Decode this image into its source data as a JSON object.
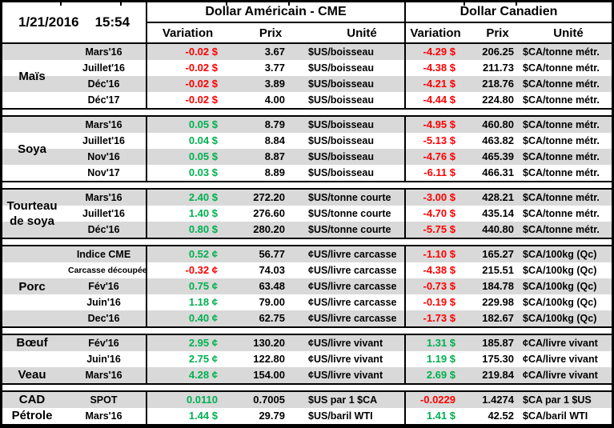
{
  "meta": {
    "date": "1/21/2016",
    "time": "15:54"
  },
  "header": {
    "us_title": "Dollar Américain - CME",
    "ca_title": "Dollar Canadien",
    "col_variation": "Variation",
    "col_prix": "Prix",
    "col_unite": "Unité"
  },
  "colors": {
    "up_green": "#00B050",
    "down_red": "#FF0000",
    "stripe_gray": "#D9D9D9"
  },
  "sections": [
    {
      "id": "mais",
      "label_lines": [
        "Maïs"
      ],
      "rows": [
        {
          "month": "Mars'16",
          "us_var": "-0.02 $",
          "us_trend": "down",
          "us_prix": "3.67",
          "us_unit": "$US/boisseau",
          "ca_var": "-4.29 $",
          "ca_trend": "down",
          "ca_prix": "206.25",
          "ca_unit": "$CA/tonne métr."
        },
        {
          "month": "Juillet'16",
          "us_var": "-0.02 $",
          "us_trend": "down",
          "us_prix": "3.77",
          "us_unit": "$US/boisseau",
          "ca_var": "-4.38 $",
          "ca_trend": "down",
          "ca_prix": "211.73",
          "ca_unit": "$CA/tonne métr."
        },
        {
          "month": "Déc'16",
          "us_var": "-0.02 $",
          "us_trend": "down",
          "us_prix": "3.89",
          "us_unit": "$US/boisseau",
          "ca_var": "-4.21 $",
          "ca_trend": "down",
          "ca_prix": "218.76",
          "ca_unit": "$CA/tonne métr."
        },
        {
          "month": "Déc'17",
          "us_var": "-0.02 $",
          "us_trend": "down",
          "us_prix": "4.00",
          "us_unit": "$US/boisseau",
          "ca_var": "-4.44 $",
          "ca_trend": "down",
          "ca_prix": "224.80",
          "ca_unit": "$CA/tonne métr."
        }
      ]
    },
    {
      "id": "soya",
      "label_lines": [
        "Soya"
      ],
      "rows": [
        {
          "month": "Mars'16",
          "us_var": "0.05 $",
          "us_trend": "up",
          "us_prix": "8.79",
          "us_unit": "$US/boisseau",
          "ca_var": "-4.95 $",
          "ca_trend": "down",
          "ca_prix": "460.80",
          "ca_unit": "$CA/tonne métr."
        },
        {
          "month": "Juillet'16",
          "us_var": "0.04 $",
          "us_trend": "up",
          "us_prix": "8.84",
          "us_unit": "$US/boisseau",
          "ca_var": "-5.13 $",
          "ca_trend": "down",
          "ca_prix": "463.82",
          "ca_unit": "$CA/tonne métr."
        },
        {
          "month": "Nov'16",
          "us_var": "0.05 $",
          "us_trend": "up",
          "us_prix": "8.87",
          "us_unit": "$US/boisseau",
          "ca_var": "-4.76 $",
          "ca_trend": "down",
          "ca_prix": "465.39",
          "ca_unit": "$CA/tonne métr."
        },
        {
          "month": "Nov'17",
          "us_var": "0.03 $",
          "us_trend": "up",
          "us_prix": "8.89",
          "us_unit": "$US/boisseau",
          "ca_var": "-6.11 $",
          "ca_trend": "down",
          "ca_prix": "466.31",
          "ca_unit": "$CA/tonne métr."
        }
      ]
    },
    {
      "id": "tourteau-de-soya",
      "label_lines": [
        "Tourteau",
        "de soya"
      ],
      "rows": [
        {
          "month": "Mars'16",
          "us_var": "2.40 $",
          "us_trend": "up",
          "us_prix": "272.20",
          "us_unit": "$US/tonne courte",
          "ca_var": "-3.00 $",
          "ca_trend": "down",
          "ca_prix": "428.21",
          "ca_unit": "$CA/tonne métr."
        },
        {
          "month": "Juillet'16",
          "us_var": "1.40 $",
          "us_trend": "up",
          "us_prix": "276.60",
          "us_unit": "$US/tonne courte",
          "ca_var": "-4.70 $",
          "ca_trend": "down",
          "ca_prix": "435.14",
          "ca_unit": "$CA/tonne métr."
        },
        {
          "month": "Déc'16",
          "us_var": "0.80 $",
          "us_trend": "up",
          "us_prix": "280.20",
          "us_unit": "$US/tonne courte",
          "ca_var": "-5.75 $",
          "ca_trend": "down",
          "ca_prix": "440.80",
          "ca_unit": "$CA/tonne métr."
        }
      ]
    },
    {
      "id": "porc",
      "label_lines": [
        "Porc"
      ],
      "rows": [
        {
          "month": "Indice CME",
          "us_var": "0.52 ¢",
          "us_trend": "up",
          "us_prix": "56.77",
          "us_unit": "¢US/livre carcasse",
          "ca_var": "-1.10 $",
          "ca_trend": "down",
          "ca_prix": "165.27",
          "ca_unit": "$CA/100kg (Qc)"
        },
        {
          "month": "Carcasse découpée",
          "small": true,
          "us_var": "-0.32 ¢",
          "us_trend": "down",
          "us_prix": "74.03",
          "us_unit": "¢US/livre carcasse",
          "ca_var": "-4.38 $",
          "ca_trend": "down",
          "ca_prix": "215.51",
          "ca_unit": "$CA/100kg (Qc)"
        },
        {
          "month": "Fév'16",
          "us_var": "0.75 ¢",
          "us_trend": "up",
          "us_prix": "63.48",
          "us_unit": "¢US/livre carcasse",
          "ca_var": "-0.73 $",
          "ca_trend": "down",
          "ca_prix": "184.78",
          "ca_unit": "$CA/100kg (Qc)"
        },
        {
          "month": "Juin'16",
          "us_var": "1.18 ¢",
          "us_trend": "up",
          "us_prix": "79.00",
          "us_unit": "¢US/livre carcasse",
          "ca_var": "-0.19 $",
          "ca_trend": "down",
          "ca_prix": "229.98",
          "ca_unit": "$CA/100kg (Qc)"
        },
        {
          "month": "Dec'16",
          "us_var": "0.40 ¢",
          "us_trend": "up",
          "us_prix": "62.75",
          "us_unit": "¢US/livre carcasse",
          "ca_var": "-1.73 $",
          "ca_trend": "down",
          "ca_prix": "182.67",
          "ca_unit": "$CA/100kg (Qc)"
        }
      ]
    },
    {
      "id": "boeuf-veau",
      "rows": [
        {
          "label": "Bœuf",
          "month": "Fév'16",
          "us_var": "2.95 ¢",
          "us_trend": "up",
          "us_prix": "130.20",
          "us_unit": "¢US/livre vivant",
          "ca_var": "1.31 $",
          "ca_trend": "up",
          "ca_prix": "185.87",
          "ca_unit": "¢CA/livre vivant"
        },
        {
          "label": "",
          "month": "Juin'16",
          "us_var": "2.75 ¢",
          "us_trend": "up",
          "us_prix": "122.80",
          "us_unit": "¢US/livre vivant",
          "ca_var": "1.19 $",
          "ca_trend": "up",
          "ca_prix": "175.30",
          "ca_unit": "¢CA/livre vivant"
        },
        {
          "label": "Veau",
          "month": "Mars'16",
          "us_var": "4.28 ¢",
          "us_trend": "up",
          "us_prix": "154.00",
          "us_unit": "¢US/livre vivant",
          "ca_var": "2.69 $",
          "ca_trend": "up",
          "ca_prix": "219.84",
          "ca_unit": "¢CA/livre vivant"
        }
      ]
    },
    {
      "id": "cad-petrole",
      "rows": [
        {
          "label": "CAD",
          "month": "SPOT",
          "us_var": "0.0110",
          "us_trend": "up",
          "us_prix": "0.7005",
          "us_unit": "$US par 1 $CA",
          "ca_var": "-0.0229",
          "ca_trend": "down",
          "ca_prix": "1.4274",
          "ca_unit": "$CA par 1 $US"
        },
        {
          "label": "Pétrole",
          "month": "Mars'16",
          "us_var": "1.44 $",
          "us_trend": "up",
          "us_prix": "29.79",
          "us_unit": "$US/baril WTI",
          "ca_var": "1.41 $",
          "ca_trend": "up",
          "ca_prix": "42.52",
          "ca_unit": "$CA/baril WTI"
        }
      ]
    }
  ]
}
